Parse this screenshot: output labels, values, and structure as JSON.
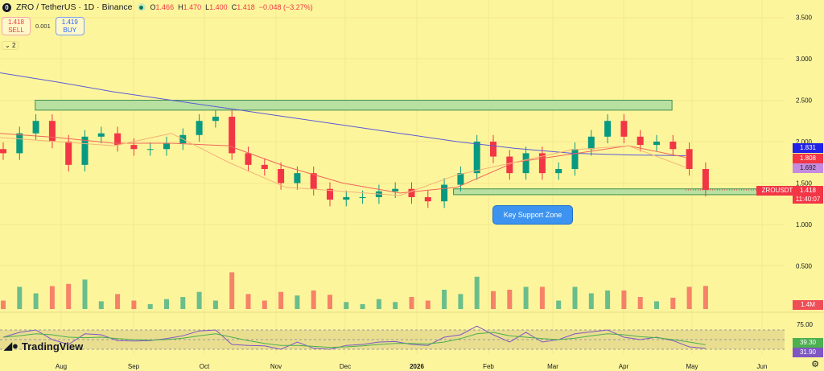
{
  "header": {
    "symbol": "ZRO / TetherUS · 1D · Binance",
    "logo": "0",
    "o_label": "O",
    "o": "1.466",
    "h_label": "H",
    "h": "1.470",
    "l_label": "L",
    "l": "1.400",
    "c_label": "C",
    "c": "1.418",
    "change": "−0.048 (−3.27%)"
  },
  "trade": {
    "sell_price": "1.418",
    "sell_label": "SELL",
    "spread": "0.001",
    "buy_price": "1.419",
    "buy_label": "BUY"
  },
  "indicators_collapse": "2",
  "annotation": "Key Support Zone",
  "brand": "TradingView",
  "colors": {
    "up": "#089981",
    "down": "#f23645",
    "ma_long": "#5b5bd6",
    "ma_mid": "#f0665a",
    "ma_short": "#f5b37a",
    "zone": "#b8e0a0",
    "rsi": "#7e57c2",
    "rsi_ma": "#4caf50"
  },
  "price_tags": {
    "symbol": "ZROUSDT",
    "last": "1.418",
    "countdown": "11:40:07",
    "ma_long": "1.831",
    "ma_mid": "1.808",
    "ma_short": "1.692",
    "volume": "1.4M",
    "rsi_ma": "39.30",
    "rsi": "31.90"
  },
  "chart_data": {
    "type": "candlestick",
    "ylim": [
      0.75,
      3.6
    ],
    "y_ticks": [
      "3.500",
      "3.000",
      "2.500",
      "2.000",
      "1.500",
      "1.000",
      "0.500"
    ],
    "y_tick_values": [
      3.5,
      3.0,
      2.5,
      2.0,
      1.5,
      1.0,
      0.5
    ],
    "x_ticks": [
      "Aug",
      "Sep",
      "Oct",
      "Nov",
      "Dec",
      "2026",
      "Feb",
      "Mar",
      "Apr",
      "May",
      "Jun"
    ],
    "rsi_ticks": [
      "75.00"
    ],
    "weekly_close": [
      1.86,
      2.1,
      2.25,
      2.0,
      1.72,
      2.06,
      2.1,
      1.96,
      1.91,
      1.91,
      1.98,
      2.08,
      2.25,
      2.3,
      1.86,
      1.72,
      1.67,
      1.5,
      1.62,
      1.43,
      1.3,
      1.33,
      1.33,
      1.4,
      1.43,
      1.33,
      1.28,
      1.48,
      1.62,
      2.0,
      1.82,
      1.62,
      1.86,
      1.62,
      1.67,
      1.91,
      2.06,
      2.25,
      2.06,
      1.96,
      2.0,
      1.91,
      1.67,
      1.418
    ],
    "ma_long": [
      2.83,
      2.72,
      2.6,
      2.5,
      2.4,
      2.3,
      2.2,
      2.1,
      2.0,
      1.92,
      1.86,
      1.84,
      1.83
    ],
    "ma_mid": [
      2.1,
      2.05,
      1.98,
      1.98,
      1.95,
      1.7,
      1.5,
      1.38,
      1.45,
      1.75,
      1.85,
      1.95,
      1.81
    ],
    "ma_short": [
      2.05,
      2.0,
      1.95,
      2.1,
      1.75,
      1.45,
      1.4,
      1.35,
      1.6,
      1.75,
      1.9,
      1.95,
      1.69
    ],
    "resistance_zone": {
      "from": "2025-07-20",
      "to": "2026-04-17",
      "low": 2.38,
      "high": 2.5
    },
    "support_zone": {
      "from": "2026-01-14",
      "to": "2026-05-24",
      "low": 1.36,
      "high": 1.43
    },
    "rsi": [
      55,
      65,
      70,
      50,
      40,
      62,
      60,
      48,
      47,
      48,
      52,
      58,
      68,
      70,
      40,
      38,
      37,
      30,
      45,
      32,
      30,
      38,
      40,
      45,
      46,
      40,
      38,
      55,
      60,
      78,
      60,
      45,
      65,
      45,
      50,
      62,
      66,
      70,
      55,
      50,
      55,
      48,
      35,
      31.9
    ],
    "rsi_ma": [
      55,
      58,
      62,
      60,
      55,
      54,
      55,
      52,
      50,
      49,
      50,
      53,
      58,
      62,
      55,
      48,
      42,
      38,
      38,
      36,
      34,
      35,
      37,
      40,
      42,
      42,
      41,
      45,
      52,
      62,
      65,
      58,
      55,
      52,
      50,
      53,
      58,
      62,
      60,
      56,
      54,
      50,
      45,
      39.3
    ]
  }
}
